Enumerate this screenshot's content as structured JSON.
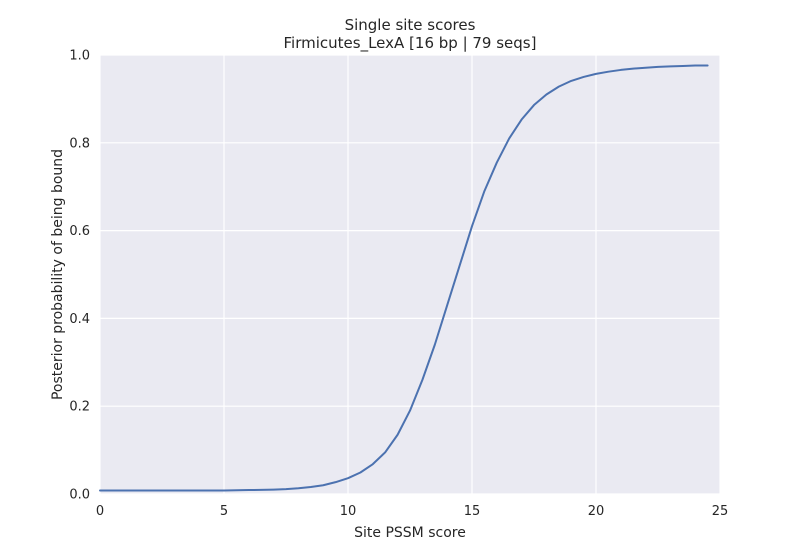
{
  "chart_data": {
    "type": "line",
    "title": "Single site scores",
    "subtitle": "Firmicutes_LexA [16 bp | 79 seqs]",
    "xlabel": "Site PSSM score",
    "ylabel": "Posterior probability of being bound",
    "xlim": [
      0,
      25
    ],
    "ylim": [
      0.0,
      1.0
    ],
    "xticks": [
      0,
      5,
      10,
      15,
      20,
      25
    ],
    "xtick_labels": [
      "0",
      "5",
      "10",
      "15",
      "20",
      "25"
    ],
    "yticks": [
      0.0,
      0.2,
      0.4,
      0.6,
      0.8,
      1.0
    ],
    "ytick_labels": [
      "0.0",
      "0.2",
      "0.4",
      "0.6",
      "0.8",
      "1.0"
    ],
    "grid": true,
    "colors": {
      "plot_background": "#eaeaf2",
      "grid": "#ffffff",
      "line": "#4c72b0",
      "text": "#262626"
    },
    "series": [
      {
        "x": [
          0,
          1,
          2,
          3,
          4,
          5,
          6,
          7,
          7.5,
          8,
          8.5,
          9,
          9.5,
          10,
          10.5,
          11,
          11.5,
          12,
          12.5,
          13,
          13.5,
          14,
          14.5,
          15,
          15.5,
          16,
          16.5,
          17,
          17.5,
          18,
          18.5,
          19,
          19.5,
          20,
          20.5,
          21,
          21.5,
          22,
          22.5,
          23,
          23.5,
          24,
          24.5
        ],
        "y": [
          0.008,
          0.008,
          0.008,
          0.008,
          0.008,
          0.008,
          0.009,
          0.01,
          0.011,
          0.013,
          0.016,
          0.02,
          0.027,
          0.036,
          0.049,
          0.068,
          0.095,
          0.135,
          0.19,
          0.26,
          0.34,
          0.43,
          0.52,
          0.61,
          0.69,
          0.755,
          0.81,
          0.853,
          0.886,
          0.91,
          0.928,
          0.941,
          0.95,
          0.957,
          0.962,
          0.966,
          0.969,
          0.971,
          0.973,
          0.974,
          0.975,
          0.976,
          0.976
        ]
      }
    ]
  }
}
